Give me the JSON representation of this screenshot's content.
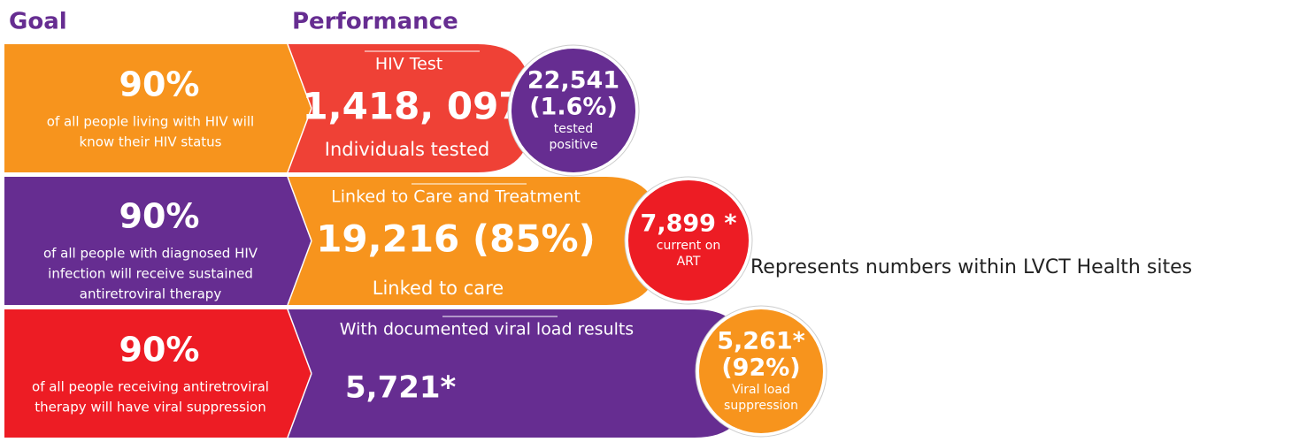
{
  "header": {
    "goal": "Goal",
    "performance": "Performance"
  },
  "rows": [
    {
      "goal": {
        "percent": "90%",
        "lines": [
          "of all people living with HIV will",
          "know their HIV status"
        ]
      },
      "performance": {
        "title": "HIV Test",
        "number": "1,418, 097",
        "caption": "Individuals tested"
      },
      "circle": {
        "lines": [
          "22,541",
          "(1.6%)"
        ],
        "small": [
          "tested",
          "positive"
        ]
      }
    },
    {
      "goal": {
        "percent": "90%",
        "lines": [
          "of all people with diagnosed HIV",
          "infection will receive sustained",
          "antiretroviral therapy"
        ]
      },
      "performance": {
        "title": "Linked to Care and Treatment",
        "number": "19,216 (85%)",
        "caption": "Linked to care"
      },
      "circle": {
        "lines": [
          "7,899 *"
        ],
        "small": [
          "current on",
          "ART"
        ]
      }
    },
    {
      "goal": {
        "percent": "90%",
        "lines": [
          "of all people receiving antiretroviral",
          "therapy will have viral suppression"
        ]
      },
      "performance": {
        "title": "With documented viral load results",
        "number": "5,721*"
      },
      "circle": {
        "lines": [
          "5,261*",
          "(92%)"
        ],
        "small": [
          "Viral load",
          "suppression"
        ]
      }
    }
  ],
  "footnote": "* Represents numbers within LVCT Health sites"
}
